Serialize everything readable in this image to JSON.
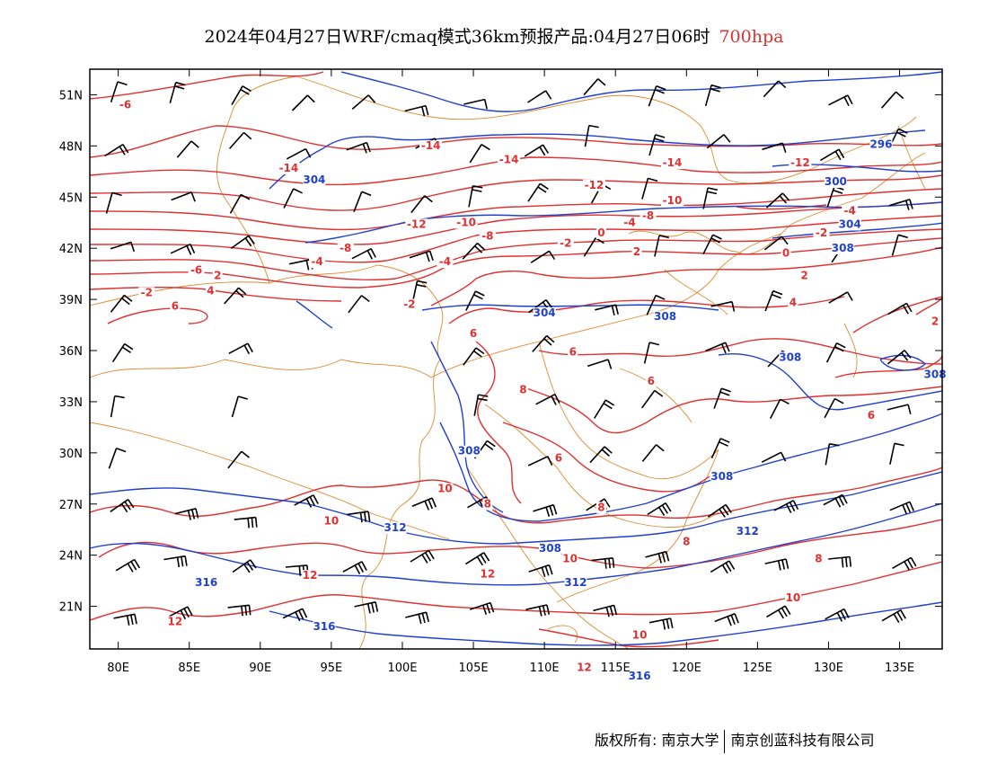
{
  "title": {
    "main": "2024年04月27日WRF/cmaq模式36km预报产品:04月27日06时",
    "level": "700hpa"
  },
  "axes": {
    "lat_labels": [
      "51N",
      "48N",
      "45N",
      "42N",
      "39N",
      "36N",
      "33N",
      "30N",
      "27N",
      "24N",
      "21N"
    ],
    "lon_labels": [
      "80E",
      "85E",
      "90E",
      "95E",
      "100E",
      "105E",
      "110E",
      "115E",
      "120E",
      "125E",
      "130E",
      "135E"
    ]
  },
  "colors": {
    "temperature": "#e03030",
    "height": "#2040d0",
    "boundary": "#e08a30",
    "wind": "#000000"
  },
  "temperature_labels": [
    {
      "text": "-6",
      "lon": 80.5,
      "lat": 50.2
    },
    {
      "text": "-14",
      "lon": 102,
      "lat": 47.8
    },
    {
      "text": "-14",
      "lon": 92,
      "lat": 46.5
    },
    {
      "text": "-14",
      "lon": 107.5,
      "lat": 47.0
    },
    {
      "text": "-14",
      "lon": 119,
      "lat": 46.8
    },
    {
      "text": "-12",
      "lon": 113.5,
      "lat": 45.5
    },
    {
      "text": "-12",
      "lon": 128,
      "lat": 46.8
    },
    {
      "text": "-10",
      "lon": 119,
      "lat": 44.6
    },
    {
      "text": "-12",
      "lon": 101,
      "lat": 43.2
    },
    {
      "text": "-10",
      "lon": 104.5,
      "lat": 43.3
    },
    {
      "text": "-8",
      "lon": 106,
      "lat": 42.5
    },
    {
      "text": "-8",
      "lon": 117.3,
      "lat": 43.7
    },
    {
      "text": "-8",
      "lon": 96,
      "lat": 41.8
    },
    {
      "text": "-6",
      "lon": 85.5,
      "lat": 40.5
    },
    {
      "text": "-4",
      "lon": 94,
      "lat": 41.0
    },
    {
      "text": "-4",
      "lon": 103,
      "lat": 41.0
    },
    {
      "text": "-4",
      "lon": 116,
      "lat": 43.3
    },
    {
      "text": "-4",
      "lon": 131.5,
      "lat": 44.0
    },
    {
      "text": "-2",
      "lon": 82,
      "lat": 39.2
    },
    {
      "text": "-2",
      "lon": 100.5,
      "lat": 38.5
    },
    {
      "text": "-2",
      "lon": 111.5,
      "lat": 42.1
    },
    {
      "text": "-2",
      "lon": 129.5,
      "lat": 42.7
    },
    {
      "text": "0",
      "lon": 114,
      "lat": 42.7
    },
    {
      "text": "0",
      "lon": 127,
      "lat": 41.5
    },
    {
      "text": "2",
      "lon": 87,
      "lat": 40.2
    },
    {
      "text": "2",
      "lon": 116.5,
      "lat": 41.6
    },
    {
      "text": "2",
      "lon": 128.3,
      "lat": 40.2
    },
    {
      "text": "2",
      "lon": 137.5,
      "lat": 37.5
    },
    {
      "text": "4",
      "lon": 86.5,
      "lat": 39.3
    },
    {
      "text": "4",
      "lon": 127.5,
      "lat": 38.6
    },
    {
      "text": "6",
      "lon": 84,
      "lat": 38.4
    },
    {
      "text": "6",
      "lon": 105,
      "lat": 36.8
    },
    {
      "text": "6",
      "lon": 112,
      "lat": 35.7
    },
    {
      "text": "6",
      "lon": 111,
      "lat": 29.5
    },
    {
      "text": "6",
      "lon": 117.5,
      "lat": 34.0
    },
    {
      "text": "6",
      "lon": 133,
      "lat": 32.0
    },
    {
      "text": "8",
      "lon": 108.5,
      "lat": 33.5
    },
    {
      "text": "8",
      "lon": 106,
      "lat": 26.8
    },
    {
      "text": "8",
      "lon": 114,
      "lat": 26.6
    },
    {
      "text": "8",
      "lon": 120,
      "lat": 24.6
    },
    {
      "text": "8",
      "lon": 129.3,
      "lat": 23.6
    },
    {
      "text": "10",
      "lon": 103,
      "lat": 27.7
    },
    {
      "text": "10",
      "lon": 95,
      "lat": 25.8
    },
    {
      "text": "10",
      "lon": 111.8,
      "lat": 23.6
    },
    {
      "text": "10",
      "lon": 116.7,
      "lat": 19.1
    },
    {
      "text": "10",
      "lon": 127.5,
      "lat": 21.3
    },
    {
      "text": "12",
      "lon": 93.5,
      "lat": 22.6
    },
    {
      "text": "12",
      "lon": 106,
      "lat": 22.7
    },
    {
      "text": "12",
      "lon": 84,
      "lat": 19.9
    },
    {
      "text": "12",
      "lon": 112.8,
      "lat": 17.2
    }
  ],
  "height_labels": [
    {
      "text": "304",
      "lon": 93.8,
      "lat": 45.8
    },
    {
      "text": "304",
      "lon": 110,
      "lat": 38.0
    },
    {
      "text": "304",
      "lon": 131.5,
      "lat": 43.2
    },
    {
      "text": "300",
      "lon": 130.5,
      "lat": 45.7
    },
    {
      "text": "296",
      "lon": 133.7,
      "lat": 47.9
    },
    {
      "text": "308",
      "lon": 118.5,
      "lat": 37.8
    },
    {
      "text": "308",
      "lon": 131,
      "lat": 41.8
    },
    {
      "text": "308",
      "lon": 127.3,
      "lat": 35.4
    },
    {
      "text": "308",
      "lon": 137.5,
      "lat": 34.4
    },
    {
      "text": "308",
      "lon": 104.7,
      "lat": 29.9
    },
    {
      "text": "308",
      "lon": 110.4,
      "lat": 24.2
    },
    {
      "text": "308",
      "lon": 122.5,
      "lat": 28.4
    },
    {
      "text": "312",
      "lon": 99.5,
      "lat": 25.4
    },
    {
      "text": "312",
      "lon": 112.2,
      "lat": 22.2
    },
    {
      "text": "312",
      "lon": 124.3,
      "lat": 25.2
    },
    {
      "text": "316",
      "lon": 86.2,
      "lat": 22.2
    },
    {
      "text": "316",
      "lon": 94.5,
      "lat": 19.6
    },
    {
      "text": "316",
      "lon": 116.7,
      "lat": 16.7
    }
  ],
  "footer": {
    "left": "版权所有: 南京大学",
    "right": "南京创蓝科技有限公司"
  }
}
